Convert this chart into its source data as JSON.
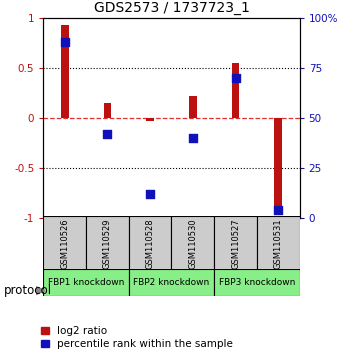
{
  "title": "GDS2573 / 1737723_1",
  "samples": [
    "GSM110526",
    "GSM110529",
    "GSM110528",
    "GSM110530",
    "GSM110527",
    "GSM110531"
  ],
  "log2_ratio": [
    0.93,
    0.15,
    -0.03,
    0.22,
    0.55,
    -0.88
  ],
  "percentile_rank": [
    88,
    42,
    12,
    40,
    70,
    4
  ],
  "groups": [
    {
      "label": "FBP1 knockdown",
      "start": 0,
      "end": 1
    },
    {
      "label": "FBP2 knockdown",
      "start": 2,
      "end": 3
    },
    {
      "label": "FBP3 knockdown",
      "start": 4,
      "end": 5
    }
  ],
  "ylim_left": [
    -1,
    1
  ],
  "ylim_right": [
    0,
    100
  ],
  "bar_color_red": "#BB1111",
  "marker_color_blue": "#1111BB",
  "zero_line_color": "#DD3333",
  "sample_box_color": "#CCCCCC",
  "group_box_color": "#88EE88",
  "title_fontsize": 10,
  "tick_fontsize": 7.5,
  "legend_fontsize": 7.5,
  "protocol_fontsize": 8.5,
  "bar_width": 0.18
}
